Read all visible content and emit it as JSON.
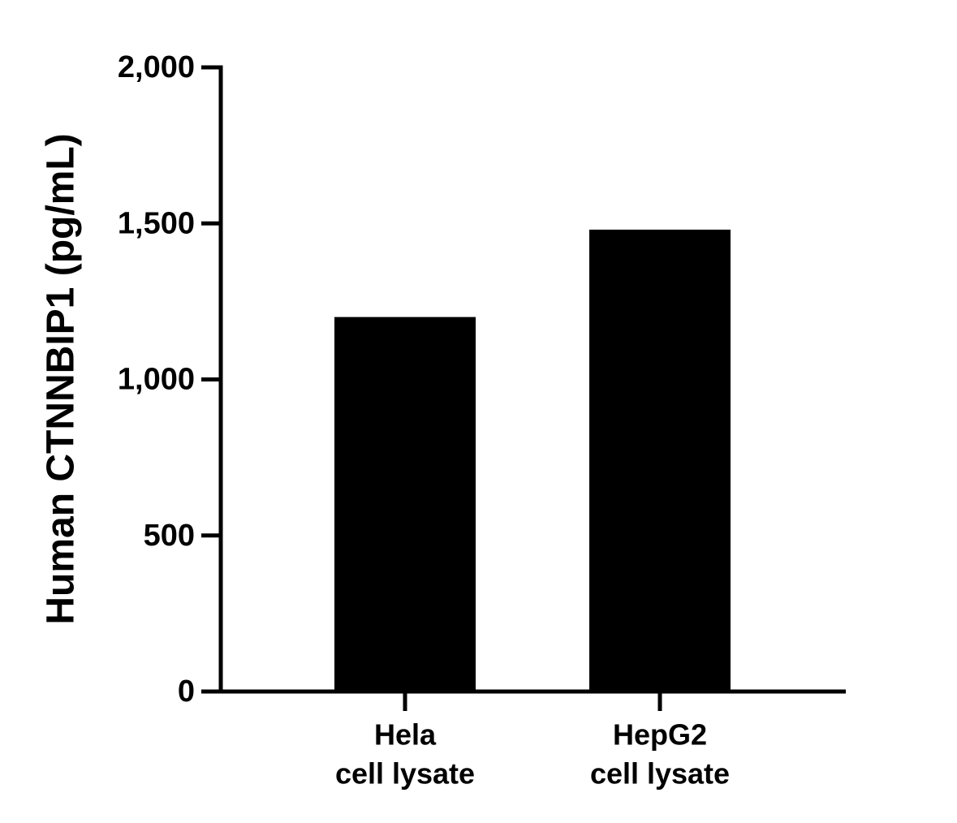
{
  "chart_data": {
    "type": "bar",
    "y_label": "Human CTNNBIP1 (pg/mL)",
    "categories": [
      [
        "Hela",
        "cell lysate"
      ],
      [
        "HepG2",
        "cell lysate"
      ]
    ],
    "values": [
      1200,
      1480
    ],
    "color": "#000000",
    "ylim": [
      0,
      2000
    ],
    "yticks": [
      0,
      500,
      {
        "value": 1000,
        "label": "1,000"
      },
      {
        "value": 1500,
        "label": "1,500"
      },
      {
        "value": 2000,
        "label": "2,000"
      }
    ],
    "grid": false
  }
}
